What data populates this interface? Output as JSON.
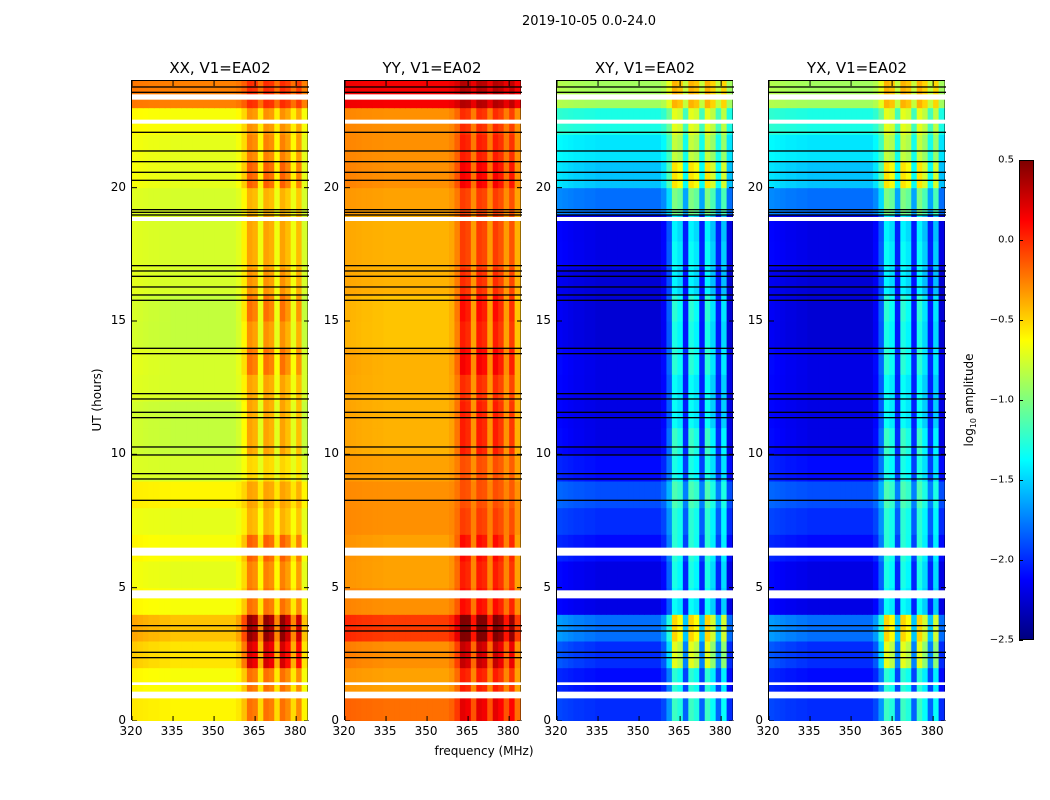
{
  "suptitle": "2019-10-05 0.0-24.0",
  "xlabel": "frequency (MHz)",
  "ylabel": "UT (hours)",
  "colorbar": {
    "label_main": "log",
    "label_sub": "10",
    "label_rest": " amplitude",
    "range": [
      -2.5,
      0.5
    ],
    "ticks": [
      "0.5",
      "0.0",
      "−0.5",
      "−1.0",
      "−1.5",
      "−2.0",
      "−2.5"
    ],
    "tick_values": [
      0.5,
      0.0,
      -0.5,
      -1.0,
      -1.5,
      -2.0,
      -2.5
    ],
    "colormap": "jet"
  },
  "chart_data": {
    "type": "heatmap",
    "xlim": [
      320,
      384.7
    ],
    "ylim": [
      0,
      24
    ],
    "x_ticks": [
      "320",
      "335",
      "350",
      "365",
      "380"
    ],
    "x_tick_values": [
      320,
      335,
      350,
      365,
      380
    ],
    "y_ticks": [
      "0",
      "5",
      "10",
      "15",
      "20"
    ],
    "y_tick_values": [
      0,
      5,
      10,
      15,
      20
    ],
    "freq_bin_start": 320,
    "freq_bin_width_mhz": 2,
    "time_bin_hours": 1,
    "flagged_hours_white": [
      [
        0.85,
        1.1
      ],
      [
        1.35,
        1.45
      ],
      [
        4.6,
        4.9
      ],
      [
        6.2,
        6.5
      ],
      [
        18.75,
        18.9
      ],
      [
        22.4,
        22.55
      ],
      [
        23.3,
        23.5
      ]
    ],
    "black_lines_hours": [
      2.4,
      2.6,
      3.4,
      3.6,
      8.3,
      9.1,
      9.3,
      10.0,
      10.3,
      11.4,
      11.6,
      12.1,
      12.3,
      13.8,
      14.0,
      15.8,
      16.0,
      16.3,
      16.7,
      16.9,
      17.1,
      19.0,
      19.1,
      19.2,
      20.3,
      20.6,
      21.0,
      21.4,
      22.1,
      23.6,
      23.8
    ],
    "panels": [
      {
        "title": "XX, V1=EA02",
        "row_levels": [
          -0.6,
          -0.65,
          -0.55,
          -0.45,
          -0.65,
          -0.7,
          -0.65,
          -0.7,
          -0.6,
          -0.75,
          -0.8,
          -0.8,
          -0.75,
          -0.75,
          -0.8,
          -0.8,
          -0.75,
          -0.75,
          -0.75,
          -0.75,
          -0.7,
          -0.7,
          -0.65,
          -0.25
        ],
        "rfi_scale": [
          0.8,
          0.9,
          1.6,
          1.8,
          0.9,
          0.9,
          1.0,
          0.6,
          0.5,
          0.5,
          0.9,
          0.9,
          0.8,
          1.1,
          1.0,
          1.2,
          0.9,
          0.8,
          0.8,
          0.7,
          1.1,
          0.9,
          0.7,
          0.5
        ]
      },
      {
        "title": "YY, V1=EA02",
        "row_levels": [
          -0.2,
          -0.35,
          -0.3,
          -0.05,
          -0.3,
          -0.35,
          -0.35,
          -0.3,
          -0.3,
          -0.35,
          -0.4,
          -0.4,
          -0.4,
          -0.4,
          -0.45,
          -0.45,
          -0.4,
          -0.4,
          -0.4,
          -0.35,
          -0.3,
          -0.3,
          -0.3,
          0.15
        ],
        "rfi_scale": [
          0.8,
          0.8,
          1.2,
          1.2,
          0.8,
          0.8,
          0.9,
          0.5,
          0.4,
          0.5,
          0.9,
          0.9,
          0.8,
          1.1,
          1.0,
          1.1,
          0.8,
          0.7,
          0.7,
          0.6,
          0.9,
          0.7,
          0.6,
          0.4
        ]
      },
      {
        "title": "XY, V1=EA02",
        "row_levels": [
          -2.0,
          -2.1,
          -2.0,
          -1.8,
          -2.2,
          -2.2,
          -2.1,
          -2.0,
          -1.9,
          -2.1,
          -2.2,
          -2.2,
          -2.2,
          -2.2,
          -2.25,
          -2.25,
          -2.25,
          -2.2,
          -2.2,
          -1.8,
          -1.55,
          -1.45,
          -1.3,
          -0.9
        ],
        "rfi_scale": [
          1.6,
          1.7,
          2.6,
          2.6,
          1.7,
          1.8,
          1.7,
          1.5,
          1.5,
          1.6,
          2.0,
          1.7,
          1.7,
          1.9,
          1.9,
          2.0,
          1.7,
          1.7,
          1.6,
          1.6,
          2.0,
          1.3,
          1.2,
          1.0
        ]
      },
      {
        "title": "YX, V1=EA02",
        "row_levels": [
          -2.0,
          -2.1,
          -2.0,
          -1.8,
          -2.2,
          -2.2,
          -2.1,
          -2.0,
          -1.9,
          -2.1,
          -2.2,
          -2.2,
          -2.2,
          -2.2,
          -2.25,
          -2.25,
          -2.25,
          -2.2,
          -2.2,
          -1.8,
          -1.55,
          -1.45,
          -1.3,
          -0.9
        ],
        "rfi_scale": [
          1.6,
          1.7,
          2.6,
          2.6,
          1.7,
          1.8,
          1.7,
          1.5,
          1.5,
          1.6,
          2.0,
          1.7,
          1.7,
          1.9,
          1.9,
          2.0,
          1.7,
          1.7,
          1.6,
          1.6,
          2.0,
          1.3,
          1.2,
          1.0
        ]
      }
    ],
    "col_offsets": [
      0.05,
      0.04,
      0.03,
      0.02,
      0.02,
      0.01,
      0.01,
      0.0,
      0.0,
      0.0,
      0.0,
      0.0,
      0.0,
      0.0,
      0.0,
      0.0,
      0.0,
      0.0,
      0.0,
      0.05,
      0.2,
      0.5,
      0.45,
      0.1,
      0.5,
      0.45,
      0.1,
      0.5,
      0.4,
      0.1,
      0.4,
      0.0
    ]
  }
}
